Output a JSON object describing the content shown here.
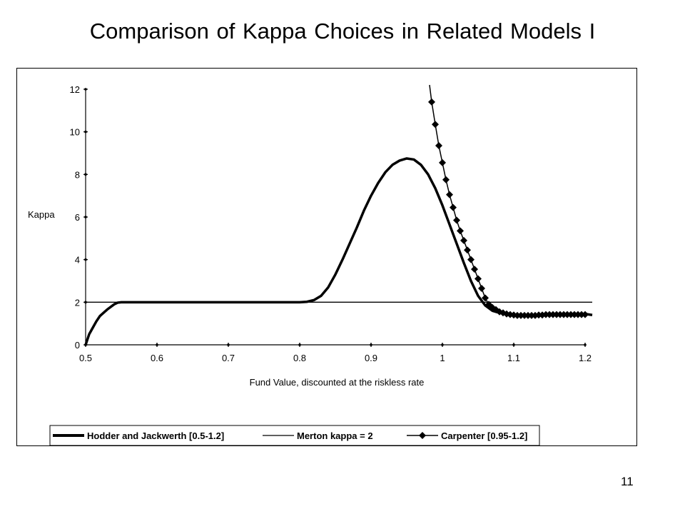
{
  "slide": {
    "title": "Comparison of Kappa Choices in Related Models I",
    "page_number": "11"
  },
  "chart_data": {
    "type": "line",
    "title": "",
    "xlabel": "Fund Value, discounted at the riskless rate",
    "ylabel": "Kappa",
    "xlim": [
      0.5,
      1.2
    ],
    "ylim": [
      0,
      12
    ],
    "xticks": [
      "0.5",
      "0.6",
      "0.7",
      "0.8",
      "0.9",
      "1",
      "1.1",
      "1.2"
    ],
    "yticks": [
      "0",
      "2",
      "4",
      "6",
      "8",
      "10",
      "12"
    ],
    "grid": false,
    "legend_position": "bottom",
    "series": [
      {
        "name": "Hodder and Jackwerth [0.5-1.2]",
        "style": "thick-line",
        "color": "#000000",
        "x": [
          0.5,
          0.505,
          0.51,
          0.515,
          0.52,
          0.53,
          0.54,
          0.545,
          0.55,
          0.6,
          0.7,
          0.8,
          0.81,
          0.82,
          0.83,
          0.84,
          0.85,
          0.86,
          0.87,
          0.88,
          0.89,
          0.9,
          0.91,
          0.92,
          0.93,
          0.94,
          0.95,
          0.96,
          0.97,
          0.98,
          0.99,
          1.0,
          1.01,
          1.02,
          1.03,
          1.04,
          1.05,
          1.06,
          1.07,
          1.08,
          1.09,
          1.1,
          1.12,
          1.14,
          1.16,
          1.18,
          1.2,
          1.21
        ],
        "y": [
          0.0,
          0.5,
          0.8,
          1.1,
          1.35,
          1.65,
          1.9,
          1.98,
          2.0,
          2.0,
          2.0,
          2.0,
          2.02,
          2.1,
          2.3,
          2.7,
          3.3,
          4.0,
          4.75,
          5.5,
          6.3,
          7.0,
          7.6,
          8.1,
          8.45,
          8.65,
          8.75,
          8.7,
          8.45,
          8.0,
          7.35,
          6.55,
          5.65,
          4.75,
          3.85,
          3.0,
          2.3,
          1.85,
          1.6,
          1.5,
          1.45,
          1.42,
          1.4,
          1.4,
          1.42,
          1.45,
          1.45,
          1.4
        ]
      },
      {
        "name": "Merton kappa = 2",
        "style": "thin-line",
        "color": "#000000",
        "x": [
          0.5,
          1.21
        ],
        "y": [
          2,
          2
        ]
      },
      {
        "name": "Carpenter [0.95-1.2]",
        "style": "line-diamond",
        "color": "#000000",
        "x": [
          0.982,
          0.985,
          0.99,
          0.995,
          1.0,
          1.005,
          1.01,
          1.015,
          1.02,
          1.025,
          1.03,
          1.035,
          1.04,
          1.045,
          1.05,
          1.055,
          1.06,
          1.065,
          1.07,
          1.075,
          1.08,
          1.085,
          1.09,
          1.095,
          1.1,
          1.105,
          1.11,
          1.115,
          1.12,
          1.125,
          1.13,
          1.135,
          1.14,
          1.145,
          1.15,
          1.155,
          1.16,
          1.165,
          1.17,
          1.175,
          1.18,
          1.185,
          1.19,
          1.195,
          1.2
        ],
        "y": [
          12.2,
          11.4,
          10.35,
          9.35,
          8.55,
          7.75,
          7.05,
          6.45,
          5.85,
          5.35,
          4.9,
          4.45,
          4.0,
          3.55,
          3.1,
          2.65,
          2.2,
          1.9,
          1.75,
          1.65,
          1.55,
          1.5,
          1.45,
          1.42,
          1.4,
          1.38,
          1.38,
          1.38,
          1.38,
          1.38,
          1.38,
          1.4,
          1.4,
          1.42,
          1.42,
          1.42,
          1.42,
          1.42,
          1.42,
          1.42,
          1.42,
          1.42,
          1.42,
          1.42,
          1.42
        ]
      }
    ]
  }
}
